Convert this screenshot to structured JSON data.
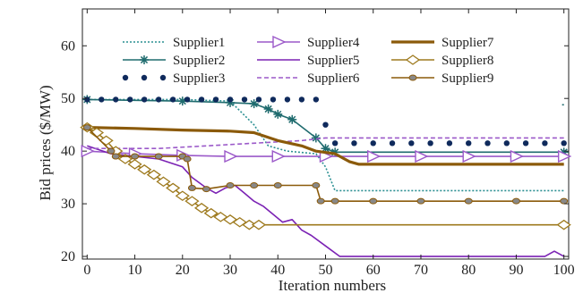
{
  "chart_data": {
    "type": "line",
    "xlabel": "Iteration numbers",
    "ylabel": "Bid prices ($/MW)",
    "xlim": [
      -1,
      101
    ],
    "ylim": [
      19.5,
      67
    ],
    "xticks": [
      0,
      10,
      20,
      30,
      40,
      50,
      60,
      70,
      80,
      90,
      100
    ],
    "yticks": [
      20,
      30,
      40,
      50,
      60
    ],
    "grid": false,
    "legend_placement": "top-center",
    "series": [
      {
        "name": "Supplier1",
        "color": "#2a8f92",
        "style": "dotted",
        "marker": "none",
        "points": [
          [
            0,
            49.8
          ],
          [
            20,
            49.8
          ],
          [
            30,
            49.5
          ],
          [
            35,
            45
          ],
          [
            38,
            41
          ],
          [
            42,
            40
          ],
          [
            48,
            39.5
          ],
          [
            50,
            37
          ],
          [
            52,
            32.5
          ],
          [
            100,
            32.5
          ]
        ]
      },
      {
        "name": "Supplier2",
        "color": "#1f6b6e",
        "style": "solid",
        "marker": "asterisk",
        "points": [
          [
            0,
            49.8
          ],
          [
            20,
            49.5
          ],
          [
            30,
            49.2
          ],
          [
            35,
            49
          ],
          [
            38,
            48
          ],
          [
            40,
            47
          ],
          [
            43,
            46
          ],
          [
            48,
            42.5
          ],
          [
            50,
            40.5
          ],
          [
            52,
            39.8
          ],
          [
            100,
            39.8
          ]
        ],
        "extra_points": [
          [
            100,
            48.8
          ]
        ]
      },
      {
        "name": "Supplier3",
        "color": "#0f2a5c",
        "style": "none",
        "marker": "dot",
        "points": [
          [
            0,
            49.8
          ],
          [
            3,
            49.8
          ],
          [
            6,
            49.8
          ],
          [
            9,
            49.8
          ],
          [
            12,
            49.8
          ],
          [
            15,
            49.8
          ],
          [
            18,
            49.8
          ],
          [
            21,
            49.8
          ],
          [
            24,
            49.8
          ],
          [
            27,
            49.8
          ],
          [
            30,
            49.8
          ],
          [
            33,
            49.8
          ],
          [
            36,
            49.8
          ],
          [
            39,
            49.8
          ],
          [
            42,
            49.8
          ],
          [
            45,
            49.8
          ],
          [
            48,
            49.8
          ],
          [
            50,
            45
          ],
          [
            52,
            41.5
          ],
          [
            56,
            41.5
          ],
          [
            60,
            41.5
          ],
          [
            64,
            41.5
          ],
          [
            68,
            41.5
          ],
          [
            72,
            41.5
          ],
          [
            76,
            41.5
          ],
          [
            80,
            41.5
          ],
          [
            84,
            41.5
          ],
          [
            88,
            41.5
          ],
          [
            92,
            41.5
          ],
          [
            96,
            41.5
          ],
          [
            100,
            41.5
          ]
        ]
      },
      {
        "name": "Supplier4",
        "color": "#9b59c9",
        "style": "solid",
        "marker": "triangle-right",
        "points": [
          [
            0,
            40
          ],
          [
            10,
            39.5
          ],
          [
            20,
            39.2
          ],
          [
            30,
            39
          ],
          [
            40,
            39
          ],
          [
            50,
            39
          ],
          [
            60,
            39
          ],
          [
            70,
            39
          ],
          [
            80,
            39
          ],
          [
            90,
            39
          ],
          [
            100,
            39
          ]
        ]
      },
      {
        "name": "Supplier5",
        "color": "#7b22b4",
        "style": "solid",
        "marker": "none",
        "points": [
          [
            0,
            41
          ],
          [
            5,
            39.5
          ],
          [
            10,
            39
          ],
          [
            15,
            38.5
          ],
          [
            20,
            37
          ],
          [
            22,
            35
          ],
          [
            25,
            33
          ],
          [
            27,
            32
          ],
          [
            29,
            33
          ],
          [
            31,
            33.5
          ],
          [
            33,
            32
          ],
          [
            35,
            30.5
          ],
          [
            37,
            29.5
          ],
          [
            39,
            28
          ],
          [
            41,
            26.5
          ],
          [
            43,
            27
          ],
          [
            45,
            25
          ],
          [
            47,
            24
          ],
          [
            50,
            22
          ],
          [
            53,
            20
          ],
          [
            60,
            20
          ],
          [
            70,
            20
          ],
          [
            80,
            20
          ],
          [
            90,
            20
          ],
          [
            96,
            20
          ],
          [
            98,
            21
          ],
          [
            100,
            20
          ]
        ]
      },
      {
        "name": "Supplier6",
        "color": "#9b59c9",
        "style": "dashed",
        "marker": "none",
        "points": [
          [
            0,
            40.5
          ],
          [
            15,
            40.5
          ],
          [
            25,
            41
          ],
          [
            35,
            41.5
          ],
          [
            45,
            42
          ],
          [
            50,
            42.5
          ],
          [
            55,
            42.5
          ],
          [
            100,
            42.5
          ]
        ]
      },
      {
        "name": "Supplier7",
        "color": "#8b5a0a",
        "style": "solid-thick",
        "marker": "none",
        "points": [
          [
            0,
            44.5
          ],
          [
            10,
            44.3
          ],
          [
            20,
            44
          ],
          [
            30,
            43.8
          ],
          [
            35,
            43.5
          ],
          [
            40,
            42
          ],
          [
            45,
            41
          ],
          [
            48,
            40
          ],
          [
            52,
            39.5
          ],
          [
            55,
            38
          ],
          [
            57,
            37.5
          ],
          [
            100,
            37.5
          ]
        ]
      },
      {
        "name": "Supplier8",
        "color": "#9e7a1e",
        "style": "solid",
        "marker": "diamond",
        "points": [
          [
            0,
            44.5
          ],
          [
            2,
            43.5
          ],
          [
            4,
            42
          ],
          [
            6,
            40
          ],
          [
            8,
            38.5
          ],
          [
            10,
            37.5
          ],
          [
            12,
            36.5
          ],
          [
            14,
            35.5
          ],
          [
            16,
            34.2
          ],
          [
            18,
            33
          ],
          [
            20,
            31.5
          ],
          [
            22,
            30.5
          ],
          [
            24,
            29.2
          ],
          [
            26,
            28.2
          ],
          [
            28,
            27.5
          ],
          [
            30,
            27
          ],
          [
            32,
            26.5
          ],
          [
            34,
            26
          ],
          [
            36,
            26
          ],
          [
            100,
            26
          ]
        ]
      },
      {
        "name": "Supplier9",
        "color": "#8b5a0a",
        "style": "solid",
        "marker": "circle-filled",
        "points": [
          [
            0,
            44.5
          ],
          [
            5,
            40
          ],
          [
            6,
            39
          ],
          [
            10,
            39
          ],
          [
            15,
            39
          ],
          [
            20,
            39
          ],
          [
            21,
            38.5
          ],
          [
            22,
            33
          ],
          [
            25,
            32.8
          ],
          [
            30,
            33.5
          ],
          [
            35,
            33.5
          ],
          [
            40,
            33.5
          ],
          [
            48,
            33.5
          ],
          [
            49,
            30.5
          ],
          [
            52,
            30.5
          ],
          [
            60,
            30.5
          ],
          [
            70,
            30.5
          ],
          [
            80,
            30.5
          ],
          [
            90,
            30.5
          ],
          [
            100,
            30.5
          ]
        ]
      }
    ]
  }
}
